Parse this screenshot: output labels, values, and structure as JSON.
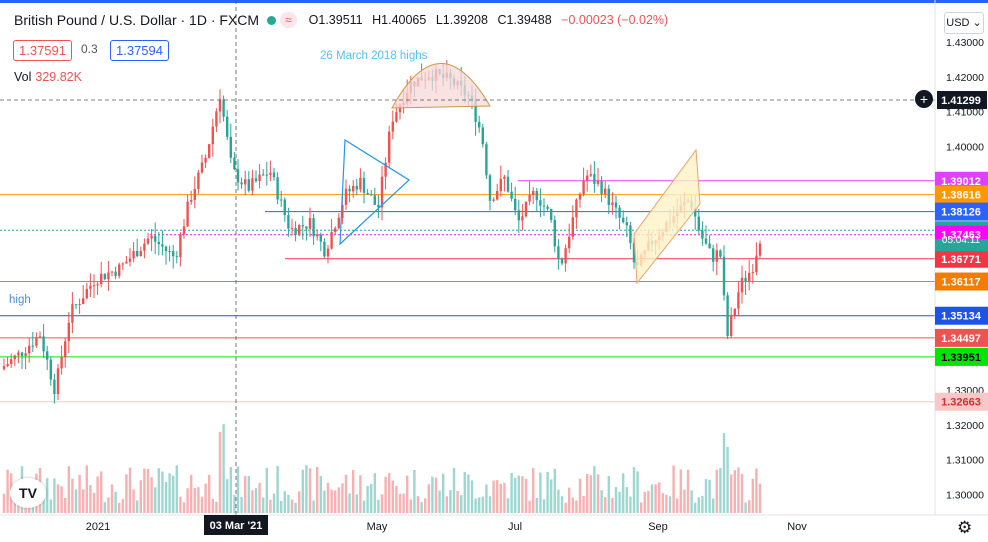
{
  "header": {
    "symbol": "British Pound / U.S. Dollar · 1D · FXCM",
    "open": "O1.39511",
    "high": "H1.40065",
    "low": "L1.39208",
    "close": "C1.39488",
    "change": "−0.00023 (−0.02%)",
    "wave_icon": "≈"
  },
  "trade": {
    "sell": "1.37591",
    "spread": "0.3",
    "buy": "1.37594"
  },
  "volume": {
    "label": "Vol",
    "value": "329.82K"
  },
  "currency_button": "USD ⌄",
  "logo_text": "TV",
  "crosshair_price": "1.41299",
  "crosshair_date": "03 Mar '21",
  "price_countdown": "05:04:11",
  "colors": {
    "up": "#ef5350",
    "down": "#26a69a",
    "accent": "#2962ff"
  },
  "chart_data": {
    "type": "candlestick",
    "title": "British Pound / U.S. Dollar · 1D · FXCM",
    "y_axis": {
      "ticks": [
        "1.43000",
        "1.42000",
        "1.41000",
        "1.40000",
        "1.39000",
        "1.38000",
        "1.37000",
        "1.36000",
        "1.35000",
        "1.34000",
        "1.33000",
        "1.32000",
        "1.31000",
        "1.30000"
      ],
      "range": [
        1.2975,
        1.4338
      ]
    },
    "x_axis": {
      "ticks": [
        "2021",
        "03 Mar '21",
        "May",
        "Jul",
        "Sep",
        "Nov"
      ]
    },
    "price_axis_labels": [
      {
        "value": 1.39012,
        "label": "1.39012",
        "color": "#e040fb"
      },
      {
        "value": 1.38616,
        "label": "1.38616",
        "color": "#ff9800"
      },
      {
        "value": 1.38126,
        "label": "1.38126",
        "color": "#2962ff"
      },
      {
        "value": 1.37591,
        "label": "1.37591",
        "color": "#26a69a"
      },
      {
        "value": 1.37463,
        "label": "1.37463",
        "color": "#ff00ff"
      },
      {
        "value": 1.36771,
        "label": "1.36771",
        "color": "#f23645"
      },
      {
        "value": 1.36117,
        "label": "1.36117",
        "color": "#f57c00"
      },
      {
        "value": 1.35134,
        "label": "1.35134",
        "color": "#1e53e5"
      },
      {
        "value": 1.34497,
        "label": "1.34497",
        "color": "#ef5350"
      },
      {
        "value": 1.33951,
        "label": "1.33951",
        "color": "#00e600"
      },
      {
        "value": 1.32663,
        "label": "1.32663",
        "color": "#f8c8c8"
      }
    ],
    "annotations": [
      {
        "text": "26 March 2018 highs",
        "color": "#4fc3f7"
      },
      {
        "text": "high",
        "color": "#4a90d9"
      }
    ],
    "volume_axis": "bottom overlay",
    "grid": true
  }
}
